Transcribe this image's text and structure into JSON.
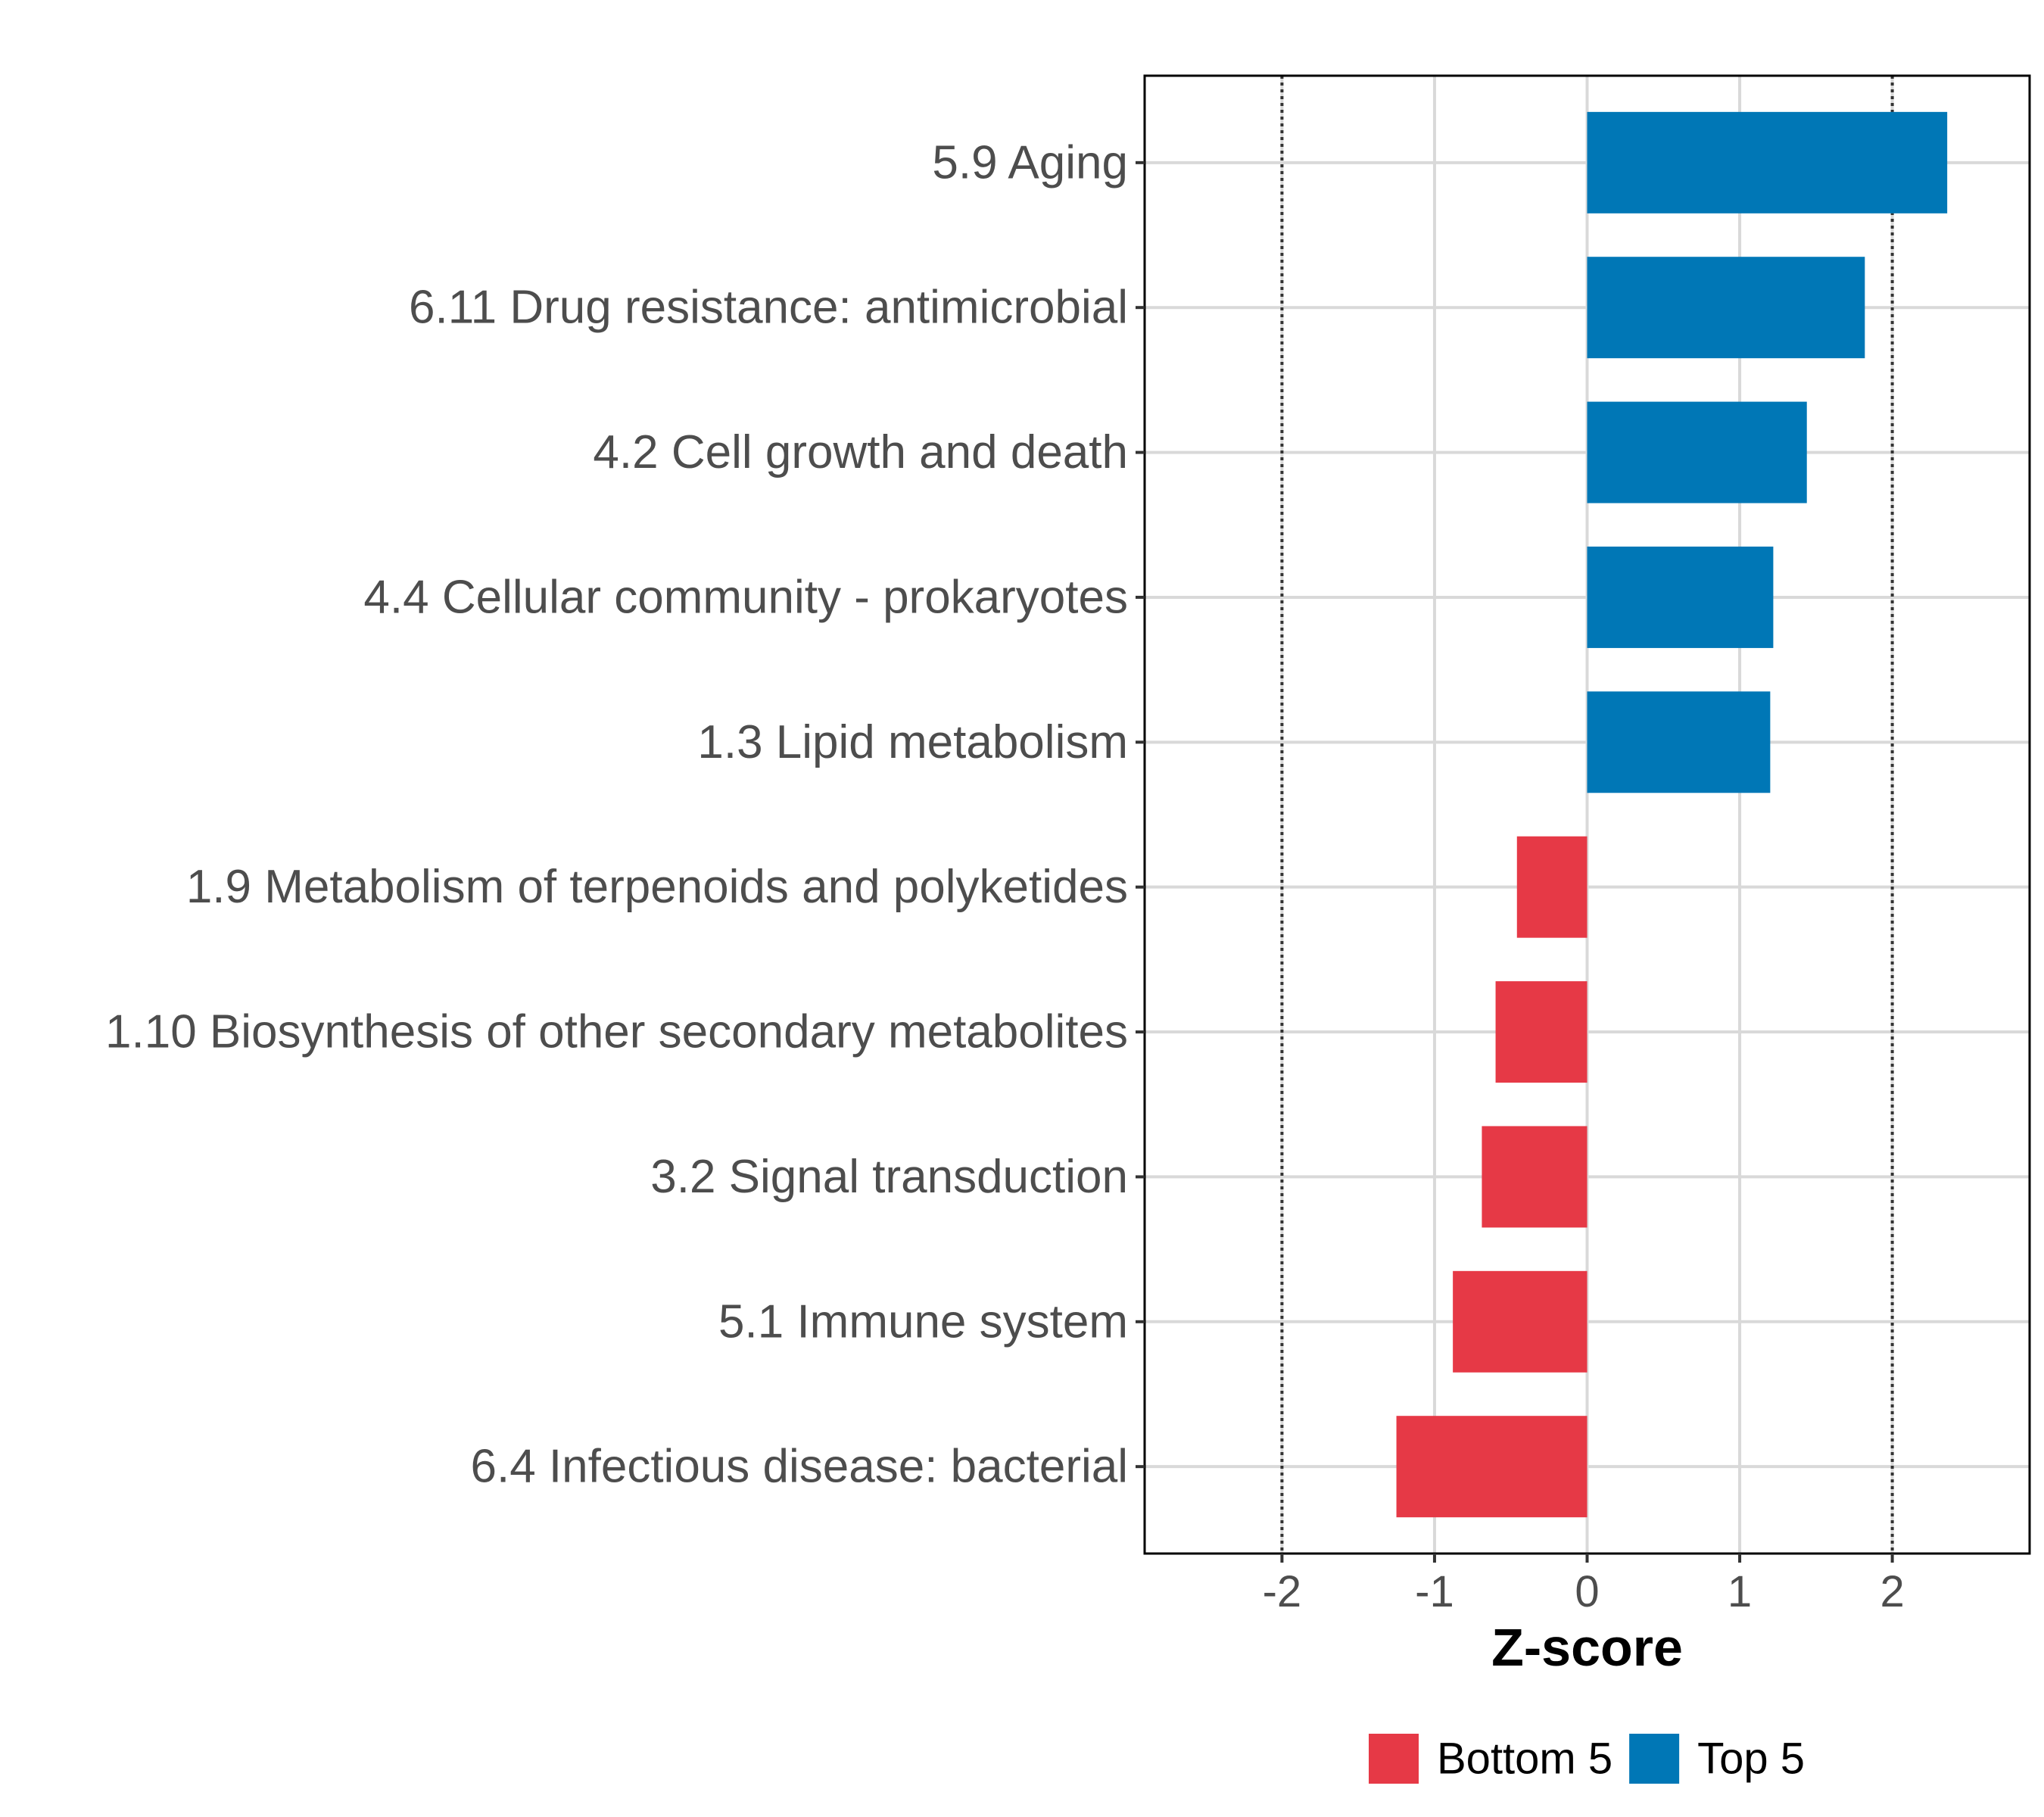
{
  "chart_data": {
    "type": "bar",
    "orientation": "horizontal",
    "title": "",
    "xlabel": "Z-score",
    "ylabel": "",
    "xlim": [
      -2.9,
      2.9
    ],
    "xticks": [
      -2,
      -1,
      0,
      1,
      2
    ],
    "xtick_labels": [
      "-2",
      "-1",
      "0",
      "1",
      "2"
    ],
    "reference_lines": [
      -2,
      2
    ],
    "grid": true,
    "categories": [
      "5.9 Aging",
      "6.11 Drug resistance: antimicrobial",
      "4.2 Cell growth and death",
      "4.4 Cellular community - prokaryotes",
      "1.3 Lipid metabolism",
      "1.9 Metabolism of terpenoids and polyketides",
      "1.10 Biosynthesis of other secondary metabolites",
      "3.2 Signal transduction",
      "5.1 Immune system",
      "6.4 Infectious disease: bacterial"
    ],
    "values": [
      2.36,
      1.82,
      1.44,
      1.22,
      1.2,
      -0.46,
      -0.6,
      -0.69,
      -0.88,
      -1.25
    ],
    "groups": [
      "Top 5",
      "Top 5",
      "Top 5",
      "Top 5",
      "Top 5",
      "Bottom 5",
      "Bottom 5",
      "Bottom 5",
      "Bottom 5",
      "Bottom 5"
    ],
    "legend": {
      "position": "bottom",
      "entries": [
        {
          "label": "Bottom 5",
          "color": "#E63946"
        },
        {
          "label": "Top 5",
          "color": "#0077B6"
        }
      ]
    }
  }
}
